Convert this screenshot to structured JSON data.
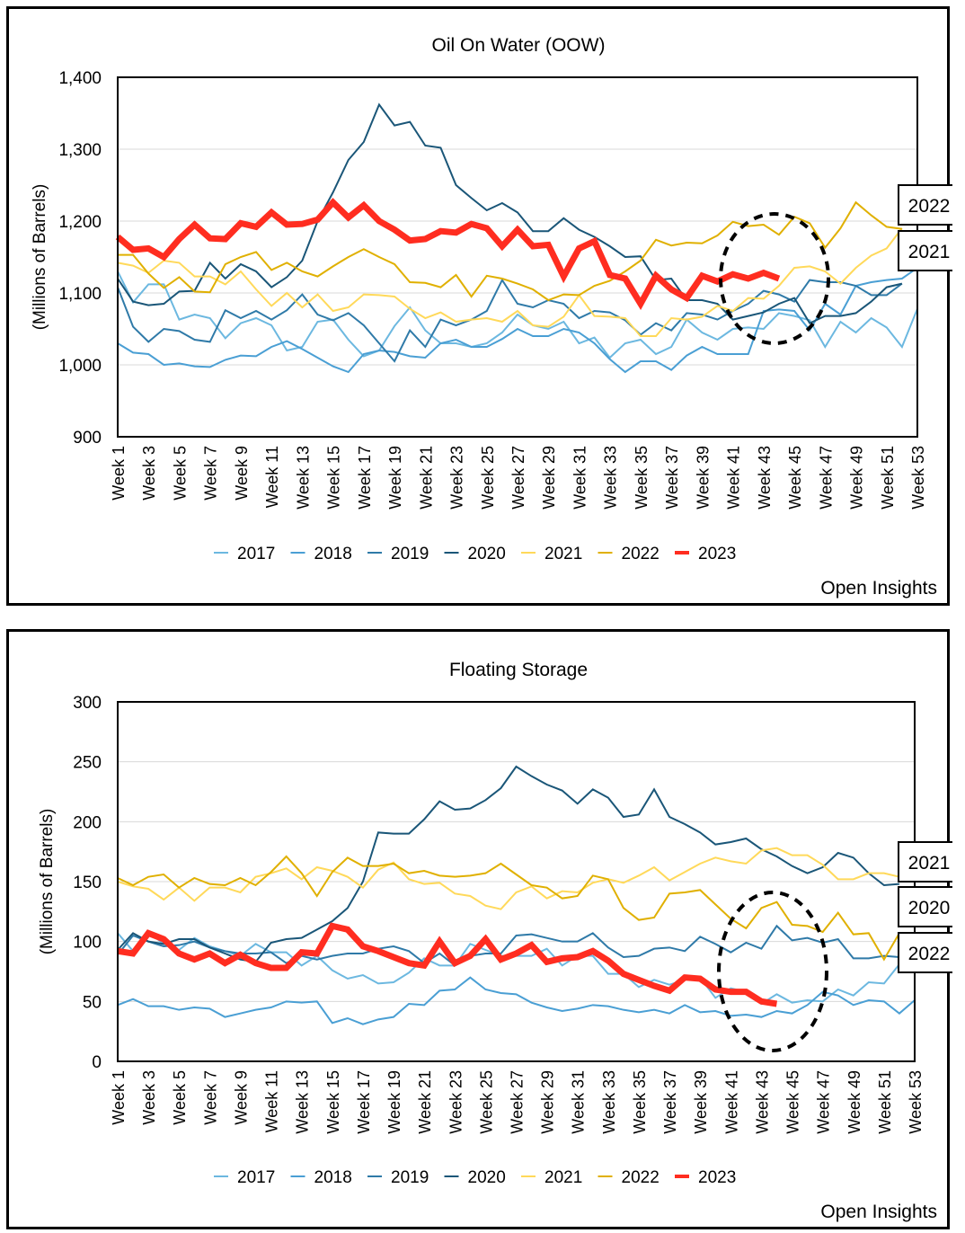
{
  "colors": {
    "2017": "#6cb8e0",
    "2018": "#4a9fd4",
    "2019": "#2f7aa8",
    "2020": "#1a5678",
    "2021": "#ffd95a",
    "2022": "#e0b000",
    "2023": "#ff2d20"
  },
  "chart_data": [
    {
      "type": "line",
      "title": "Oil On Water (OOW)",
      "ylabel": "(Millions of Barrels)",
      "xlabel": "",
      "ylim": [
        900,
        1400
      ],
      "yticks": [
        "900",
        "1,000",
        "1,100",
        "1,200",
        "1,300",
        "1,400"
      ],
      "ytick_values": [
        900,
        1000,
        1100,
        1200,
        1300,
        1400
      ],
      "grid": true,
      "legend": "bottom",
      "source": "Open Insights",
      "annotation_labels": [
        "2022",
        "2021"
      ],
      "series": [
        {
          "name": "2017",
          "values": [
            1130,
            1087,
            1112,
            1112,
            1063,
            1070,
            1065,
            1037,
            1058,
            1065,
            1055,
            1020,
            1025,
            1060,
            1063,
            1035,
            1012,
            1020,
            1054,
            1080,
            1048,
            1030,
            1030,
            1025,
            1030,
            1045,
            1070,
            1055,
            1050,
            1060,
            1030,
            1038,
            1010,
            1030,
            1035,
            1015,
            1025,
            1063,
            1045,
            1035,
            1050,
            1052,
            1050,
            1072,
            1068,
            1062,
            1025,
            1060,
            1045,
            1065,
            1052,
            1025,
            1078
          ]
        },
        {
          "name": "2018",
          "values": [
            1030,
            1017,
            1015,
            1000,
            1002,
            998,
            997,
            1007,
            1013,
            1012,
            1025,
            1033,
            1022,
            1010,
            998,
            990,
            1015,
            1020,
            1018,
            1012,
            1010,
            1030,
            1035,
            1025,
            1025,
            1036,
            1050,
            1040,
            1040,
            1050,
            1045,
            1030,
            1008,
            990,
            1005,
            1005,
            993,
            1013,
            1025,
            1015,
            1015,
            1015,
            1075,
            1077,
            1075,
            1048,
            1085,
            1070,
            1110,
            1115,
            1118,
            1120,
            1135
          ]
        },
        {
          "name": "2019",
          "values": [
            1108,
            1053,
            1032,
            1050,
            1047,
            1035,
            1032,
            1076,
            1065,
            1075,
            1063,
            1076,
            1098,
            1070,
            1062,
            1072,
            1055,
            1030,
            1005,
            1048,
            1025,
            1063,
            1055,
            1063,
            1075,
            1118,
            1085,
            1080,
            1090,
            1085,
            1065,
            1075,
            1073,
            1062,
            1042,
            1058,
            1048,
            1072,
            1070,
            1063,
            1075,
            1085,
            1103,
            1098,
            1088,
            1118,
            1115,
            1115,
            1110,
            1097,
            1097,
            1113
          ]
        },
        {
          "name": "2020",
          "values": [
            1120,
            1088,
            1083,
            1085,
            1102,
            1103,
            1142,
            1120,
            1140,
            1130,
            1108,
            1122,
            1145,
            1200,
            1240,
            1285,
            1310,
            1362,
            1333,
            1338,
            1305,
            1302,
            1250,
            1232,
            1215,
            1225,
            1212,
            1186,
            1186,
            1204,
            1188,
            1178,
            1165,
            1150,
            1151,
            1118,
            1120,
            1090,
            1090,
            1085,
            1063,
            1068,
            1073,
            1085,
            1093,
            1058,
            1068,
            1068,
            1072,
            1088,
            1108,
            1113
          ]
        },
        {
          "name": "2021",
          "values": [
            1142,
            1138,
            1128,
            1145,
            1142,
            1123,
            1123,
            1112,
            1130,
            1105,
            1082,
            1100,
            1080,
            1098,
            1075,
            1080,
            1098,
            1097,
            1095,
            1078,
            1065,
            1073,
            1060,
            1063,
            1065,
            1060,
            1075,
            1055,
            1053,
            1067,
            1097,
            1068,
            1067,
            1065,
            1040,
            1040,
            1065,
            1063,
            1067,
            1082,
            1075,
            1093,
            1092,
            1110,
            1135,
            1137,
            1130,
            1113,
            1135,
            1152,
            1162,
            1190
          ]
        },
        {
          "name": "2022",
          "values": [
            1153,
            1153,
            1127,
            1107,
            1122,
            1102,
            1101,
            1140,
            1150,
            1157,
            1132,
            1142,
            1130,
            1123,
            1137,
            1150,
            1161,
            1150,
            1140,
            1115,
            1114,
            1108,
            1125,
            1095,
            1124,
            1120,
            1113,
            1105,
            1090,
            1098,
            1097,
            1110,
            1117,
            1130,
            1145,
            1174,
            1166,
            1170,
            1169,
            1180,
            1199,
            1193,
            1195,
            1181,
            1206,
            1197,
            1163,
            1190,
            1226,
            1208,
            1192,
            1189
          ]
        },
        {
          "name": "2023",
          "values": [
            1178,
            1160,
            1162,
            1150,
            1175,
            1195,
            1176,
            1175,
            1197,
            1192,
            1212,
            1195,
            1196,
            1202,
            1226,
            1205,
            1222,
            1200,
            1188,
            1173,
            1175,
            1186,
            1184,
            1196,
            1190,
            1165,
            1188,
            1165,
            1167,
            1123,
            1162,
            1172,
            1125,
            1120,
            1085,
            1124,
            1105,
            1093,
            1124,
            1116,
            1126,
            1120,
            1128,
            1120
          ]
        }
      ]
    },
    {
      "type": "line",
      "title": "Floating Storage",
      "ylabel": "(Millions of Barrels)",
      "xlabel": "",
      "ylim": [
        0,
        300
      ],
      "yticks": [
        "0",
        "50",
        "100",
        "150",
        "200",
        "250",
        "300"
      ],
      "ytick_values": [
        0,
        50,
        100,
        150,
        200,
        250,
        300
      ],
      "grid": true,
      "legend": "bottom",
      "source": "Open Insights",
      "annotation_labels": [
        "2021",
        "2020",
        "2022"
      ],
      "series": [
        {
          "name": "2017",
          "values": [
            107,
            92,
            108,
            98,
            93,
            103,
            96,
            92,
            88,
            98,
            91,
            91,
            80,
            88,
            76,
            69,
            72,
            65,
            66,
            74,
            86,
            80,
            80,
            98,
            93,
            88,
            88,
            88,
            94,
            80,
            88,
            88,
            73,
            73,
            62,
            68,
            64,
            68,
            70,
            53,
            61,
            58,
            48,
            56,
            49,
            51,
            50,
            60,
            55,
            66,
            65,
            81,
            78
          ]
        },
        {
          "name": "2018",
          "values": [
            47,
            52,
            46,
            46,
            43,
            45,
            44,
            37,
            40,
            43,
            45,
            50,
            49,
            50,
            32,
            36,
            31,
            35,
            37,
            48,
            47,
            59,
            60,
            70,
            60,
            57,
            56,
            49,
            45,
            42,
            44,
            47,
            46,
            43,
            41,
            43,
            40,
            47,
            41,
            42,
            38,
            39,
            37,
            42,
            40,
            47,
            58,
            55,
            47,
            51,
            50,
            40,
            51
          ]
        },
        {
          "name": "2019",
          "values": [
            89,
            105,
            100,
            96,
            97,
            100,
            95,
            92,
            90,
            90,
            91,
            82,
            88,
            85,
            88,
            90,
            90,
            94,
            96,
            92,
            82,
            90,
            80,
            88,
            90,
            90,
            105,
            106,
            103,
            100,
            100,
            107,
            95,
            87,
            88,
            94,
            95,
            92,
            104,
            98,
            91,
            99,
            94,
            113,
            101,
            103,
            99,
            102,
            86,
            86,
            88,
            87
          ]
        },
        {
          "name": "2020",
          "values": [
            93,
            107,
            100,
            98,
            102,
            102,
            95,
            90,
            85,
            83,
            99,
            102,
            103,
            110,
            117,
            128,
            150,
            191,
            190,
            190,
            202,
            217,
            210,
            211,
            218,
            228,
            246,
            238,
            231,
            226,
            215,
            227,
            220,
            204,
            206,
            227,
            204,
            198,
            191,
            181,
            183,
            186,
            177,
            171,
            163,
            157,
            162,
            174,
            170,
            157,
            147,
            148
          ]
        },
        {
          "name": "2021",
          "values": [
            150,
            146,
            144,
            135,
            145,
            134,
            145,
            145,
            141,
            154,
            157,
            161,
            152,
            162,
            159,
            154,
            145,
            160,
            166,
            152,
            148,
            149,
            140,
            138,
            130,
            127,
            141,
            146,
            136,
            142,
            141,
            149,
            152,
            149,
            155,
            162,
            151,
            158,
            165,
            170,
            167,
            165,
            176,
            178,
            172,
            172,
            164,
            152,
            152,
            157,
            157,
            154
          ]
        },
        {
          "name": "2022",
          "values": [
            153,
            147,
            154,
            156,
            145,
            153,
            148,
            147,
            153,
            147,
            158,
            171,
            157,
            138,
            158,
            170,
            163,
            163,
            165,
            157,
            159,
            155,
            154,
            155,
            157,
            165,
            156,
            147,
            145,
            136,
            138,
            155,
            152,
            128,
            118,
            120,
            140,
            141,
            143,
            131,
            119,
            111,
            128,
            133,
            114,
            113,
            108,
            124,
            106,
            107,
            85,
            107
          ]
        },
        {
          "name": "2023",
          "values": [
            92,
            90,
            107,
            102,
            90,
            85,
            90,
            82,
            89,
            82,
            78,
            78,
            91,
            90,
            113,
            110,
            96,
            92,
            87,
            82,
            80,
            100,
            82,
            88,
            102,
            85,
            90,
            97,
            83,
            86,
            87,
            92,
            84,
            73,
            68,
            63,
            59,
            70,
            69,
            60,
            58,
            58,
            50,
            48
          ]
        }
      ]
    }
  ],
  "xticks": [
    "Week 1",
    "Week 3",
    "Week 5",
    "Week 7",
    "Week 9",
    "Week 11",
    "Week 13",
    "Week 15",
    "Week 17",
    "Week 19",
    "Week 21",
    "Week 23",
    "Week 25",
    "Week 27",
    "Week 29",
    "Week 31",
    "Week 33",
    "Week 35",
    "Week 37",
    "Week 39",
    "Week 41",
    "Week 43",
    "Week 45",
    "Week 47",
    "Week 49",
    "Week 51",
    "Week 53"
  ]
}
